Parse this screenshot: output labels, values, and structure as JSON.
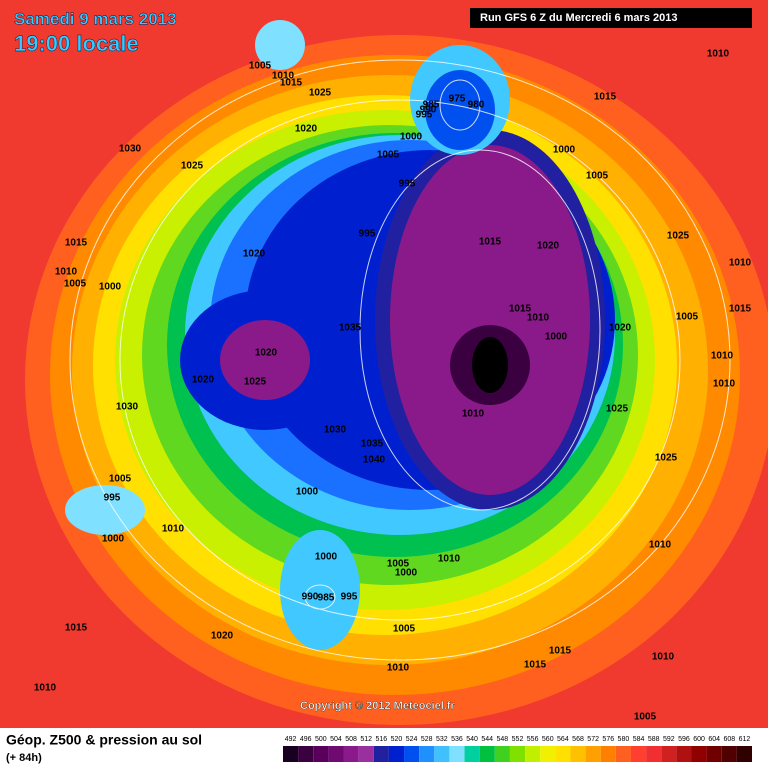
{
  "header": {
    "date": "Samedi 9 mars 2013",
    "time": "19:00 locale",
    "run": "Run GFS 6 Z du Mercredi 6 mars 2013"
  },
  "copyright": "Copyright © 2012 Meteociel.fr",
  "footer": {
    "title": "Géop. Z500 & pression au sol",
    "lead": "(+ 84h)"
  },
  "isobar_labels": [
    1005,
    1010,
    1015,
    1025,
    1020,
    1030,
    1025,
    1015,
    1010,
    1005,
    1000,
    1020,
    1035,
    1020,
    1025,
    1020,
    1030,
    1005,
    995,
    1000,
    1010,
    1030,
    1035,
    1040,
    1000,
    1000,
    990,
    985,
    995,
    1005,
    1000,
    1010,
    1005,
    1015,
    1020,
    1010,
    1015,
    1010,
    1015,
    1010,
    1005,
    1010,
    1025,
    1025,
    1020,
    1010,
    1010,
    1005,
    1015,
    1025,
    1010,
    1005,
    1000,
    1015,
    1010,
    975,
    980,
    985,
    990,
    995,
    1000,
    1005,
    995,
    995,
    1015,
    1020,
    1015,
    1010,
    1000,
    1010
  ],
  "colorbar": {
    "levels": [
      492,
      496,
      500,
      504,
      508,
      512,
      516,
      520,
      524,
      528,
      532,
      536,
      540,
      544,
      548,
      552,
      556,
      560,
      564,
      568,
      572,
      576,
      580,
      584,
      588,
      592,
      596,
      600,
      604,
      608,
      612
    ],
    "colors": [
      "#1a0020",
      "#3a0040",
      "#5a005a",
      "#6e0a70",
      "#8a1a8a",
      "#9a30a0",
      "#2020a0",
      "#0020d0",
      "#0050f0",
      "#2090ff",
      "#40c0ff",
      "#80e0ff",
      "#00d0a0",
      "#00c040",
      "#40d020",
      "#80e000",
      "#c0f000",
      "#f0f000",
      "#ffe000",
      "#ffc000",
      "#ffa000",
      "#ff8000",
      "#ff6020",
      "#ff4030",
      "#f03030",
      "#d02020",
      "#b01010",
      "#900000",
      "#700000",
      "#500000",
      "#300000"
    ]
  }
}
